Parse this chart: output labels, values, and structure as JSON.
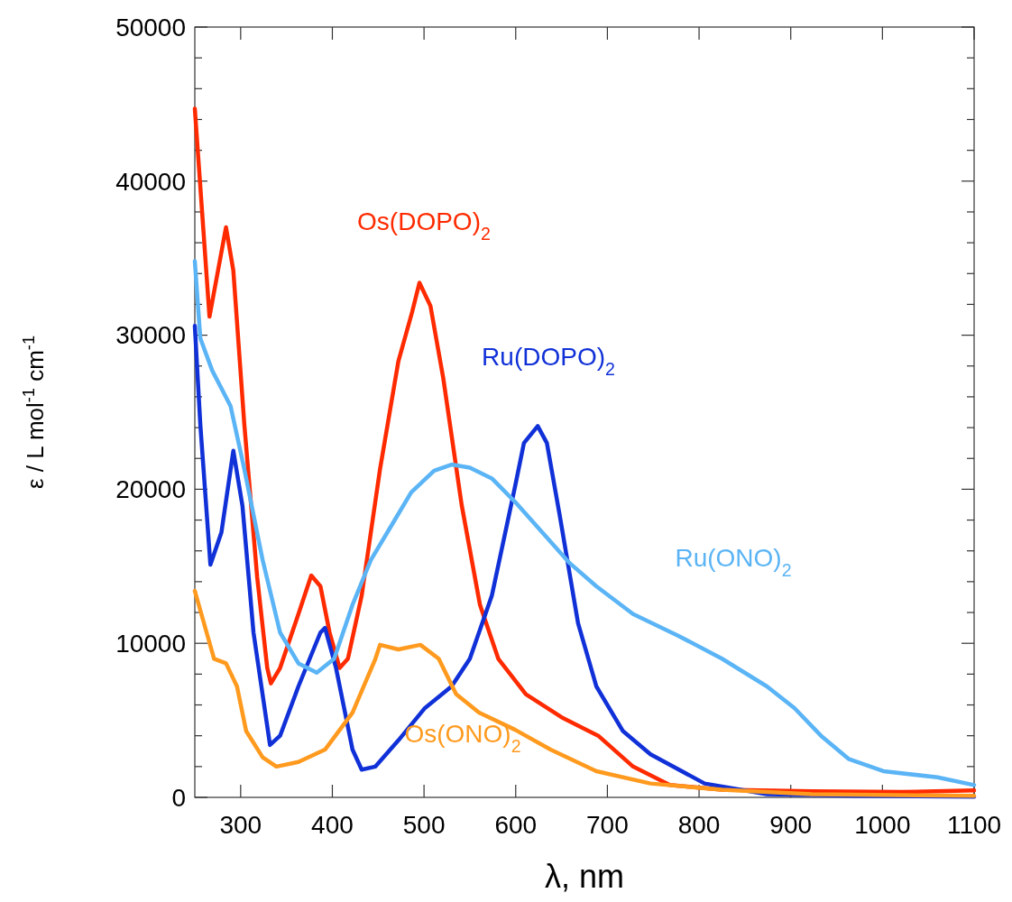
{
  "chart_data": {
    "type": "line",
    "xlabel": "λ, nm",
    "ylabel": "ε / L mol$^{-1}$ cm$^{-1}$",
    "xlim": [
      250,
      1100
    ],
    "ylim": [
      0,
      50000
    ],
    "xticks": [
      300,
      400,
      500,
      600,
      700,
      800,
      900,
      1000,
      1100
    ],
    "yticks": [
      0,
      {
        "value": 2000,
        "label": null
      },
      {
        "value": 4000,
        "label": null
      },
      {
        "value": 6000,
        "label": null
      },
      {
        "value": 8000,
        "label": null
      },
      10000,
      {
        "value": 12000,
        "label": null
      },
      {
        "value": 14000,
        "label": null
      },
      {
        "value": 16000,
        "label": null
      },
      {
        "value": 18000,
        "label": null
      },
      20000,
      {
        "value": 22000,
        "label": null
      },
      {
        "value": 24000,
        "label": null
      },
      {
        "value": 26000,
        "label": null
      },
      {
        "value": 28000,
        "label": null
      },
      30000,
      {
        "value": 32000,
        "label": null
      },
      {
        "value": 34000,
        "label": null
      },
      {
        "value": 36000,
        "label": null
      },
      {
        "value": 38000,
        "label": null
      },
      40000,
      {
        "value": 42000,
        "label": null
      },
      {
        "value": 44000,
        "label": null
      },
      {
        "value": 46000,
        "label": null
      },
      {
        "value": 48000,
        "label": null
      },
      50000
    ],
    "grid": false,
    "marker": "none",
    "line_style": "solid",
    "series": [
      {
        "name": "Os(DOPO)$_{2}$",
        "color": "#ff2a00",
        "x": [
          250,
          266,
          284,
          292,
          304,
          318,
          329,
          333,
          343,
          363,
          377,
          387,
          397,
          408,
          417,
          432,
          452,
          472,
          487,
          495,
          507,
          521,
          541,
          561,
          581,
          611,
          650,
          690,
          728,
          768,
          825,
          923,
          1021,
          1100
        ],
        "values": [
          44700,
          31200,
          37000,
          34200,
          24200,
          14300,
          8400,
          7400,
          8400,
          11900,
          14400,
          13700,
          10700,
          8400,
          9000,
          13100,
          21300,
          28300,
          31500,
          33400,
          31900,
          27200,
          19000,
          12500,
          9000,
          6700,
          5200,
          4000,
          2000,
          800,
          500,
          400,
          350,
          450
        ]
      },
      {
        "name": "Ru(DOPO)$_{2}$",
        "color": "#1030d8",
        "x": [
          250,
          256,
          267,
          279,
          292,
          302,
          314,
          332,
          343,
          363,
          387,
          392,
          404,
          422,
          432,
          447,
          472,
          501,
          530,
          550,
          574,
          599,
          609,
          624,
          634,
          648,
          668,
          688,
          717,
          747,
          806,
          874,
          973,
          1100
        ],
        "values": [
          30600,
          24200,
          15100,
          17200,
          22500,
          18900,
          10700,
          3400,
          4000,
          7200,
          10700,
          11000,
          8400,
          3100,
          1800,
          2000,
          3700,
          5800,
          7200,
          9000,
          13100,
          20100,
          23000,
          24100,
          23000,
          18300,
          11300,
          7200,
          4300,
          2800,
          900,
          200,
          100,
          50
        ]
      },
      {
        "name": "Ru(ONO)$_{2}$",
        "color": "#5ab4f5",
        "x": [
          250,
          256,
          269,
          289,
          304,
          324,
          343,
          363,
          383,
          402,
          422,
          442,
          466,
          486,
          511,
          530,
          550,
          574,
          599,
          629,
          659,
          688,
          728,
          777,
          825,
          874,
          904,
          933,
          963,
          1001,
          1060,
          1100
        ],
        "values": [
          34800,
          29800,
          27700,
          25400,
          21300,
          15400,
          10700,
          8700,
          8100,
          9000,
          12500,
          15400,
          17800,
          19800,
          21200,
          21600,
          21400,
          20700,
          19200,
          17200,
          15200,
          13700,
          11900,
          10500,
          9000,
          7200,
          5800,
          4000,
          2500,
          1700,
          1300,
          800
        ]
      },
      {
        "name": "Os(ONO)$_{2}$",
        "color": "#ff9a1e",
        "x": [
          250,
          260,
          271,
          284,
          296,
          306,
          324,
          339,
          363,
          392,
          422,
          447,
          452,
          472,
          496,
          516,
          535,
          560,
          599,
          638,
          688,
          747,
          825,
          923,
          1100
        ],
        "values": [
          13400,
          11300,
          9000,
          8700,
          7200,
          4300,
          2600,
          2000,
          2300,
          3100,
          5500,
          9000,
          9900,
          9600,
          9900,
          9000,
          6700,
          5500,
          4400,
          3100,
          1700,
          900,
          500,
          200,
          100
        ]
      }
    ]
  }
}
